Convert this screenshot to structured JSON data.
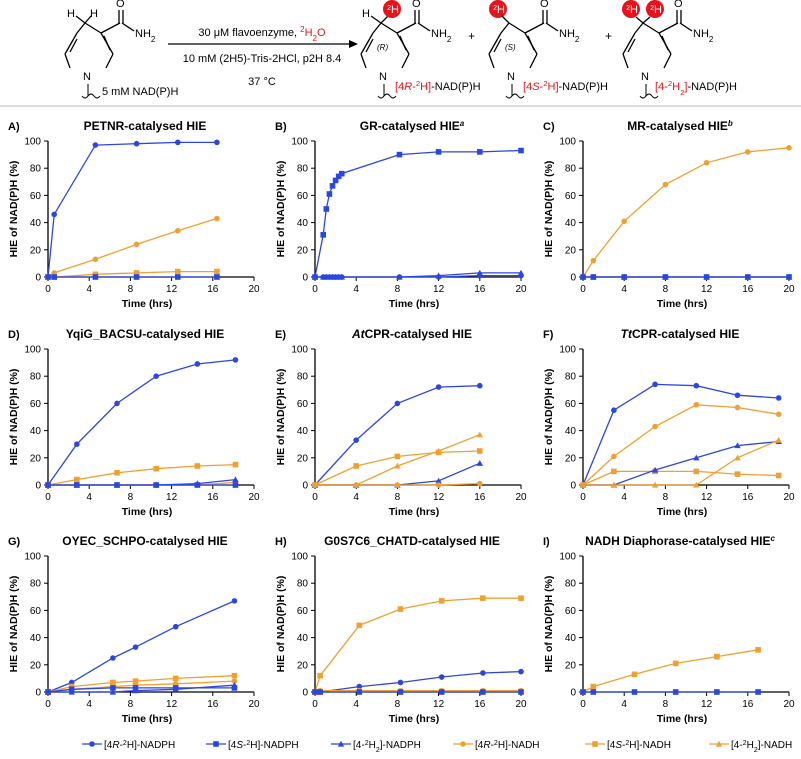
{
  "scheme": {
    "reagent_line1_prefix": "30 μM flavoenzyme, ",
    "reagent_line1_iso": "2H",
    "reagent_line1_suffix": "2O",
    "reagent_line2": "10 mM (2H5)-Tris-2HCl, p2H 8.4",
    "reagent_line3": "37 °C",
    "substrate_label": "5 mM NAD(P)H",
    "amide": "NH2",
    "plus": "+",
    "product_r_label": "[4R-2H]-NAD(P)H",
    "product_s_label": "[4S-2H]-NAD(P)H",
    "product_d2_label": "[4-2H2]-NAD(P)H",
    "stereo_r": "(R)",
    "stereo_s": "(S)",
    "h_atom": "H",
    "d_atom": "2H",
    "n_atom": "N",
    "o_atom": "O"
  },
  "colors": {
    "nadph": "#2C46E0",
    "nadh": "#F0A030",
    "red": "#E8121B"
  },
  "legend": [
    {
      "label": "[4R-2H]-NADPH",
      "color": "#2C46E0",
      "marker": "circle"
    },
    {
      "label": "[4S-2H]-NADPH",
      "color": "#2C46E0",
      "marker": "square"
    },
    {
      "label": "[4-2H2]-NADPH",
      "color": "#2C46E0",
      "marker": "triangle"
    },
    {
      "label": "[4R-2H]-NADH",
      "color": "#F0A030",
      "marker": "circle"
    },
    {
      "label": "[4S-2H]-NADH",
      "color": "#F0A030",
      "marker": "square"
    },
    {
      "label": "[4-2H2]-NADH",
      "color": "#F0A030",
      "marker": "triangle"
    }
  ],
  "chart_data": [
    {
      "panel": "A)",
      "title": "PETNR-catalysed HIE",
      "type": "line",
      "xlabel": "Time (hrs)",
      "ylabel": "HIE of NAD(P)H (%)",
      "xlim": [
        0,
        20
      ],
      "ylim": [
        0,
        100
      ],
      "xticks": [
        0,
        4,
        8,
        12,
        16,
        20
      ],
      "yticks": [
        0,
        20,
        40,
        60,
        80,
        100
      ],
      "series": [
        {
          "name": "[4R-2H]-NADPH",
          "color": "#2C46E0",
          "marker": "circle",
          "x": [
            0,
            0.6,
            4.6,
            8.6,
            12.6,
            16.4
          ],
          "y": [
            0,
            46,
            97,
            98,
            99,
            99
          ]
        },
        {
          "name": "[4R-2H]-NADH",
          "color": "#F0A030",
          "marker": "circle",
          "x": [
            0,
            0.6,
            4.6,
            8.6,
            12.6,
            16.4
          ],
          "y": [
            0,
            3,
            13,
            24,
            34,
            43
          ]
        },
        {
          "name": "[4S-2H]-NADH",
          "color": "#F0A030",
          "marker": "square",
          "x": [
            0,
            0.6,
            4.6,
            8.6,
            12.6,
            16.4
          ],
          "y": [
            0,
            0,
            2,
            3,
            4,
            4
          ]
        },
        {
          "name": "[4S-2H]-NADPH",
          "color": "#2C46E0",
          "marker": "square",
          "x": [
            0,
            0.6,
            4.6,
            8.6,
            12.6,
            16.4
          ],
          "y": [
            0,
            0,
            0,
            0,
            0,
            0
          ]
        }
      ]
    },
    {
      "panel": "B)",
      "title": "GR-catalysed HIE",
      "title_sup": "a",
      "type": "line",
      "xlabel": "Time (hrs)",
      "ylabel": "HIE of NAD(P)H (%)",
      "xlim": [
        0,
        20
      ],
      "ylim": [
        0,
        100
      ],
      "xticks": [
        0,
        4,
        8,
        12,
        16,
        20
      ],
      "yticks": [
        0,
        20,
        40,
        60,
        80,
        100
      ],
      "series": [
        {
          "name": "[4S-2H]-NADPH",
          "color": "#2C46E0",
          "marker": "square",
          "x": [
            0,
            0.8,
            1.1,
            1.4,
            1.7,
            2.0,
            2.3,
            2.6,
            8.2,
            12.0,
            16.0,
            20.0
          ],
          "y": [
            0,
            31,
            50,
            61,
            67,
            71,
            74,
            76,
            90,
            92,
            92,
            93
          ]
        },
        {
          "name": "[4R-2H]-NADPH",
          "color": "#2C46E0",
          "marker": "circle",
          "x": [
            0,
            0.8,
            1.1,
            1.4,
            1.7,
            2.0,
            2.3,
            2.6,
            8.2,
            12.0,
            16.0,
            20.0
          ],
          "y": [
            0,
            0,
            0,
            0,
            0,
            0,
            0,
            0,
            0,
            0,
            1,
            1
          ]
        },
        {
          "name": "[4-2H2]-NADPH",
          "color": "#2C46E0",
          "marker": "triangle",
          "x": [
            0,
            0.8,
            1.1,
            1.4,
            1.7,
            2.0,
            2.3,
            2.6,
            8.2,
            12.0,
            16.0,
            20.0
          ],
          "y": [
            0,
            0,
            0,
            0,
            0,
            0,
            0,
            0,
            0,
            1,
            3,
            3
          ]
        }
      ]
    },
    {
      "panel": "C)",
      "title": "MR-catalysed HIE",
      "title_sup": "b",
      "type": "line",
      "xlabel": "Time (hrs)",
      "ylabel": "HIE of NAD(P)H (%)",
      "xlim": [
        0,
        20
      ],
      "ylim": [
        0,
        100
      ],
      "xticks": [
        0,
        4,
        8,
        12,
        16,
        20
      ],
      "yticks": [
        0,
        20,
        40,
        60,
        80,
        100
      ],
      "series": [
        {
          "name": "[4R-2H]-NADH",
          "color": "#F0A030",
          "marker": "circle",
          "x": [
            0,
            1,
            4,
            8,
            12,
            16,
            20
          ],
          "y": [
            0,
            12,
            41,
            68,
            84,
            92,
            95
          ]
        },
        {
          "name": "[4S-2H]-NADPH",
          "color": "#2C46E0",
          "marker": "square",
          "x": [
            0,
            1,
            4,
            8,
            12,
            16,
            20
          ],
          "y": [
            0,
            0,
            0,
            0,
            0,
            0,
            0
          ]
        },
        {
          "name": "[4-2H2]-NADPH",
          "color": "#2C46E0",
          "marker": "triangle",
          "x": [
            0,
            1,
            4,
            8,
            12,
            16,
            20
          ],
          "y": [
            0,
            0,
            0,
            0,
            0,
            0,
            0
          ]
        }
      ]
    },
    {
      "panel": "D)",
      "title": "YqiG_BACSU-catalysed HIE",
      "type": "line",
      "xlabel": "Time (hrs)",
      "ylabel": "HIE of NAD(P)H (%)",
      "xlim": [
        0,
        20
      ],
      "ylim": [
        0,
        100
      ],
      "xticks": [
        0,
        4,
        8,
        12,
        16,
        20
      ],
      "yticks": [
        0,
        20,
        40,
        60,
        80,
        100
      ],
      "series": [
        {
          "name": "[4R-2H]-NADPH",
          "color": "#2C46E0",
          "marker": "circle",
          "x": [
            0,
            2.8,
            6.7,
            10.5,
            14.5,
            18.2
          ],
          "y": [
            0,
            30,
            60,
            80,
            89,
            92
          ]
        },
        {
          "name": "[4S-2H]-NADH",
          "color": "#F0A030",
          "marker": "square",
          "x": [
            0,
            2.8,
            6.7,
            10.5,
            14.5,
            18.2
          ],
          "y": [
            0,
            4,
            9,
            12,
            14,
            15
          ]
        },
        {
          "name": "[4R-2H]-NADH",
          "color": "#F0A030",
          "marker": "circle",
          "x": [
            0,
            2.8,
            6.7,
            10.5,
            14.5,
            18.2
          ],
          "y": [
            0,
            0,
            0,
            0,
            0,
            2
          ]
        },
        {
          "name": "[4-2H2]-NADPH",
          "color": "#2C46E0",
          "marker": "triangle",
          "x": [
            0,
            2.8,
            6.7,
            10.5,
            14.5,
            18.2
          ],
          "y": [
            0,
            0,
            0,
            0,
            1,
            4
          ]
        },
        {
          "name": "[4S-2H]-NADPH",
          "color": "#2C46E0",
          "marker": "square",
          "x": [
            0,
            2.8,
            6.7,
            10.5,
            14.5,
            18.2
          ],
          "y": [
            0,
            0,
            0,
            0,
            0,
            0
          ]
        }
      ]
    },
    {
      "panel": "E)",
      "title": "AtCPR-catalysed HIE",
      "title_italic": "At",
      "type": "line",
      "xlabel": "Time (hrs)",
      "ylabel": "HIE of NAD(P)H (%)",
      "xlim": [
        0,
        20
      ],
      "ylim": [
        0,
        100
      ],
      "xticks": [
        0,
        4,
        8,
        12,
        16,
        20
      ],
      "yticks": [
        0,
        20,
        40,
        60,
        80,
        100
      ],
      "series": [
        {
          "name": "[4R-2H]-NADPH",
          "color": "#2C46E0",
          "marker": "circle",
          "x": [
            0,
            4,
            8,
            12,
            16
          ],
          "y": [
            0,
            33,
            60,
            72,
            73
          ]
        },
        {
          "name": "[4S-2H]-NADH",
          "color": "#F0A030",
          "marker": "square",
          "x": [
            0,
            4,
            8,
            12,
            16
          ],
          "y": [
            0,
            14,
            21,
            24,
            25
          ]
        },
        {
          "name": "[4-2H2]-NADH",
          "color": "#F0A030",
          "marker": "triangle",
          "x": [
            0,
            4,
            8,
            12,
            16
          ],
          "y": [
            0,
            0,
            14,
            25,
            37
          ]
        },
        {
          "name": "[4-2H2]-NADPH",
          "color": "#2C46E0",
          "marker": "triangle",
          "x": [
            0,
            4,
            8,
            12,
            16
          ],
          "y": [
            0,
            0,
            0,
            3,
            16
          ]
        },
        {
          "name": "[4R-2H]-NADH",
          "color": "#F0A030",
          "marker": "circle",
          "x": [
            0,
            4,
            8,
            12,
            16
          ],
          "y": [
            0,
            0,
            0,
            0,
            1
          ]
        }
      ]
    },
    {
      "panel": "F)",
      "title": "TtCPR-catalysed HIE",
      "title_italic": "Tt",
      "type": "line",
      "xlabel": "Time (hrs)",
      "ylabel": "HIE of NAD(P)H (%)",
      "xlim": [
        0,
        20
      ],
      "ylim": [
        0,
        100
      ],
      "xticks": [
        0,
        4,
        8,
        12,
        16,
        20
      ],
      "yticks": [
        0,
        20,
        40,
        60,
        80,
        100
      ],
      "series": [
        {
          "name": "[4R-2H]-NADPH",
          "color": "#2C46E0",
          "marker": "circle",
          "x": [
            0,
            3,
            7,
            11,
            15,
            19
          ],
          "y": [
            0,
            55,
            74,
            73,
            66,
            64
          ]
        },
        {
          "name": "[4R-2H]-NADH",
          "color": "#F0A030",
          "marker": "circle",
          "x": [
            0,
            3,
            7,
            11,
            15,
            19
          ],
          "y": [
            0,
            21,
            43,
            59,
            57,
            52
          ]
        },
        {
          "name": "[4S-2H]-NADH",
          "color": "#F0A030",
          "marker": "square",
          "x": [
            0,
            3,
            7,
            11,
            15,
            19
          ],
          "y": [
            0,
            10,
            10,
            10,
            8,
            7
          ]
        },
        {
          "name": "[4-2H2]-NADPH",
          "color": "#2C46E0",
          "marker": "triangle",
          "x": [
            0,
            3,
            7,
            11,
            15,
            19
          ],
          "y": [
            0,
            0,
            11,
            20,
            29,
            32
          ]
        },
        {
          "name": "[4-2H2]-NADH",
          "color": "#F0A030",
          "marker": "triangle",
          "x": [
            0,
            3,
            7,
            11,
            15,
            19
          ],
          "y": [
            0,
            0,
            0,
            0,
            20,
            33
          ]
        }
      ]
    },
    {
      "panel": "G)",
      "title": "OYEC_SCHPO-catalysed HIE",
      "type": "line",
      "xlabel": "Time (hrs)",
      "ylabel": "HIE of NAD(P)H (%)",
      "xlim": [
        0,
        20
      ],
      "ylim": [
        0,
        100
      ],
      "xticks": [
        0,
        4,
        8,
        12,
        16,
        20
      ],
      "yticks": [
        0,
        20,
        40,
        60,
        80,
        100
      ],
      "series": [
        {
          "name": "[4R-2H]-NADPH",
          "color": "#2C46E0",
          "marker": "circle",
          "x": [
            0,
            2.3,
            6.3,
            8.5,
            12.4,
            18.1
          ],
          "y": [
            0,
            7,
            25,
            33,
            48,
            67
          ]
        },
        {
          "name": "[4S-2H]-NADH",
          "color": "#F0A030",
          "marker": "square",
          "x": [
            0,
            2.3,
            6.3,
            8.5,
            12.4,
            18.1
          ],
          "y": [
            0,
            4,
            7,
            8,
            10,
            12
          ]
        },
        {
          "name": "[4R-2H]-NADH",
          "color": "#F0A030",
          "marker": "circle",
          "x": [
            0,
            2.3,
            6.3,
            8.5,
            12.4,
            18.1
          ],
          "y": [
            0,
            2,
            4,
            5,
            6,
            8
          ]
        },
        {
          "name": "[4S-2H]-NADPH",
          "color": "#2C46E0",
          "marker": "square",
          "x": [
            0,
            2.3,
            6.3,
            8.5,
            12.4,
            18.1
          ],
          "y": [
            0,
            2,
            3,
            3,
            3,
            3
          ]
        },
        {
          "name": "[4-2H2]-NADPH",
          "color": "#2C46E0",
          "marker": "triangle",
          "x": [
            0,
            2.3,
            6.3,
            8.5,
            12.4,
            18.1
          ],
          "y": [
            0,
            0,
            0,
            1,
            2,
            5
          ]
        }
      ]
    },
    {
      "panel": "H)",
      "title": "G0S7C6_CHATD-catalysed HIE",
      "type": "line",
      "xlabel": "Time (hrs)",
      "ylabel": "HIE of NAD(P)H (%)",
      "xlim": [
        0,
        20
      ],
      "ylim": [
        0,
        100
      ],
      "xticks": [
        0,
        4,
        8,
        12,
        16,
        20
      ],
      "yticks": [
        0,
        20,
        40,
        60,
        80,
        100
      ],
      "series": [
        {
          "name": "[4S-2H]-NADH",
          "color": "#F0A030",
          "marker": "square",
          "x": [
            0,
            0.5,
            4.3,
            8.3,
            12.3,
            16.3,
            20.0
          ],
          "y": [
            0,
            12,
            49,
            61,
            67,
            69,
            69
          ]
        },
        {
          "name": "[4R-2H]-NADPH",
          "color": "#2C46E0",
          "marker": "circle",
          "x": [
            0,
            0.5,
            4.3,
            8.3,
            12.3,
            16.3,
            20.0
          ],
          "y": [
            0,
            0,
            4,
            7,
            11,
            14,
            15
          ]
        },
        {
          "name": "[4R-2H]-NADH",
          "color": "#F0A030",
          "marker": "circle",
          "x": [
            0,
            0.5,
            4.3,
            8.3,
            12.3,
            16.3,
            20.0
          ],
          "y": [
            0,
            1,
            1,
            1,
            1,
            1,
            1
          ]
        },
        {
          "name": "[4S-2H]-NADPH",
          "color": "#2C46E0",
          "marker": "square",
          "x": [
            0,
            0.5,
            4.3,
            8.3,
            12.3,
            16.3,
            20.0
          ],
          "y": [
            0,
            0,
            0,
            0,
            0,
            0,
            0
          ]
        }
      ]
    },
    {
      "panel": "I)",
      "title": "NADH Diaphorase-catalysed HIE",
      "title_sup": "c",
      "type": "line",
      "xlabel": "Time (hrs)",
      "ylabel": "HIE of NAD(P)H (%)",
      "xlim": [
        0,
        20
      ],
      "ylim": [
        0,
        100
      ],
      "xticks": [
        0,
        4,
        8,
        12,
        16,
        20
      ],
      "yticks": [
        0,
        20,
        40,
        60,
        80,
        100
      ],
      "series": [
        {
          "name": "[4S-2H]-NADH",
          "color": "#F0A030",
          "marker": "square",
          "x": [
            0,
            1,
            5,
            9,
            13,
            17
          ],
          "y": [
            0,
            4,
            13,
            21,
            26,
            31
          ]
        },
        {
          "name": "[4S-2H]-NADPH",
          "color": "#2C46E0",
          "marker": "square",
          "x": [
            0,
            1,
            5,
            9,
            13,
            17
          ],
          "y": [
            0,
            0,
            0,
            0,
            0,
            0
          ]
        }
      ]
    }
  ]
}
